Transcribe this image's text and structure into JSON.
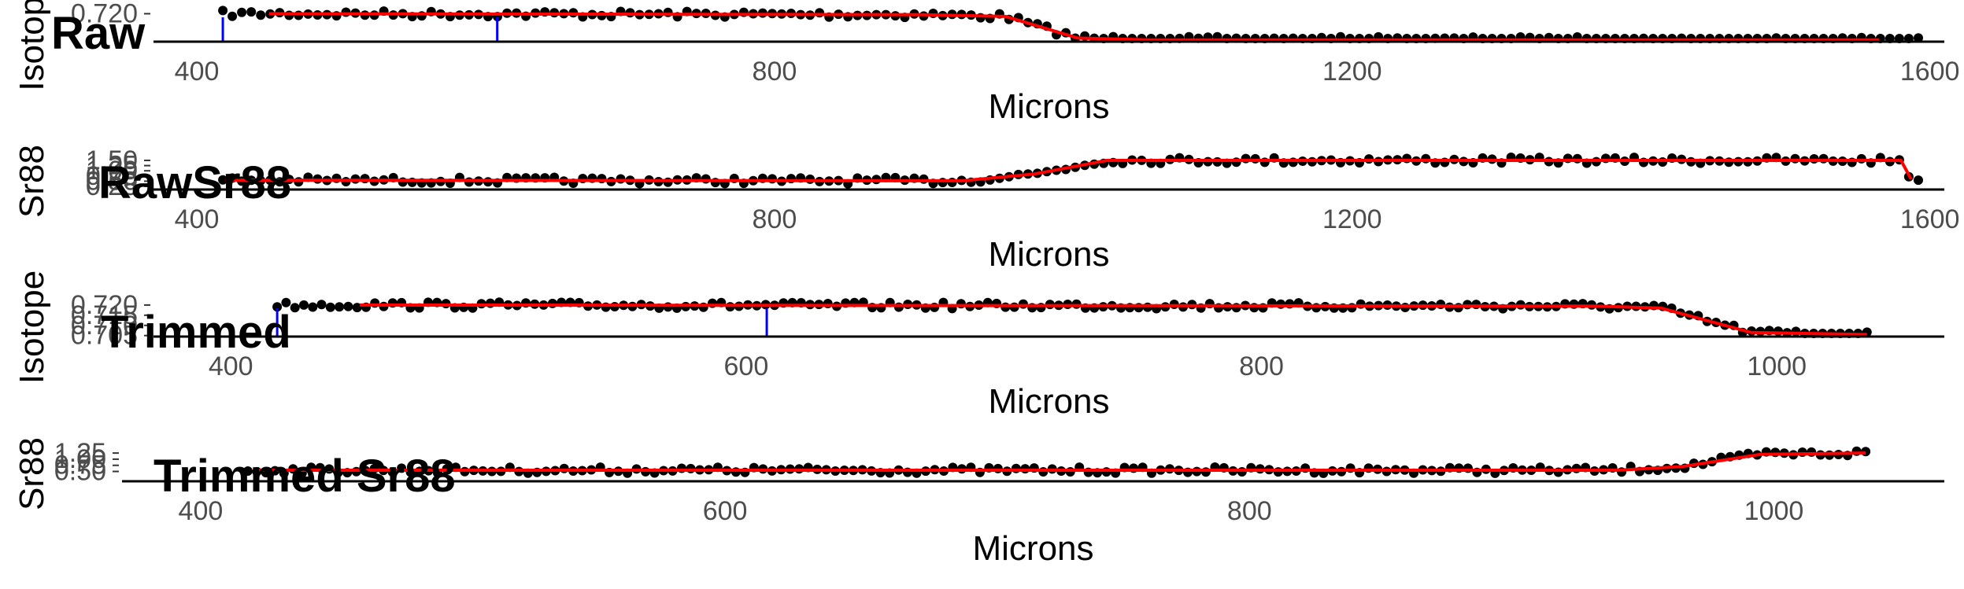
{
  "colors": {
    "points": "#000000",
    "smooth": "#ff0000",
    "marker": "#0000ff",
    "axis": "#000000"
  },
  "chart_data": [
    {
      "type": "scatter",
      "title": "Raw",
      "xlabel": "Microns",
      "ylabel": "Isotope",
      "xlim": [
        370,
        1610
      ],
      "ylim": [
        0.7045,
        0.7215
      ],
      "xticks": [
        400,
        800,
        1200,
        1600
      ],
      "yticks": [
        0.72
      ],
      "ytick_labels": [
        "0.720"
      ],
      "vlines": [
        418,
        608
      ],
      "points_x_range": [
        418,
        1592
      ],
      "smooth": {
        "x": [
          450,
          900,
          960,
          1010,
          1060,
          1565
        ],
        "y": [
          0.72,
          0.7195,
          0.7185,
          0.7065,
          0.7055,
          0.7055
        ]
      }
    },
    {
      "type": "scatter",
      "title": "RawSr88",
      "xlabel": "Microns",
      "ylabel": "Sr88",
      "xlim": [
        370,
        1610
      ],
      "ylim": [
        0.1,
        1.65
      ],
      "xticks": [
        400,
        800,
        1200,
        1600
      ],
      "yticks": [
        0.25,
        0.5,
        0.75,
        1.0,
        1.25,
        1.5
      ],
      "ytick_labels": [
        "0.25",
        "0.50",
        "0.75",
        "1.00",
        "1.25",
        "1.50"
      ],
      "points_x_range": [
        418,
        1592
      ],
      "smooth": {
        "x": [
          420,
          930,
          980,
          1030,
          1580,
          1587
        ],
        "y": [
          0.55,
          0.52,
          0.85,
          1.5,
          1.5,
          0.6
        ]
      }
    },
    {
      "type": "scatter",
      "title": "Trimmed",
      "xlabel": "Microns",
      "ylabel": "Isotope",
      "xlim": [
        370,
        1065
      ],
      "ylim": [
        0.7045,
        0.7215
      ],
      "xticks": [
        400,
        600,
        800,
        1000
      ],
      "yticks": [
        0.705,
        0.71,
        0.715,
        0.72
      ],
      "ytick_labels": [
        "0.705",
        "0.710",
        "0.715",
        "0.720"
      ],
      "vlines": [
        418,
        608
      ],
      "points_x_range": [
        418,
        1035
      ],
      "smooth": {
        "x": [
          450,
          930,
          955,
          990,
          1035
        ],
        "y": [
          0.72,
          0.7195,
          0.7185,
          0.7065,
          0.7055
        ]
      }
    },
    {
      "type": "scatter",
      "title": "Trimmed Sr88",
      "xlabel": "Microns",
      "ylabel": "Sr88",
      "xlim": [
        370,
        1065
      ],
      "ylim": [
        0.1,
        1.35
      ],
      "xticks": [
        400,
        600,
        800,
        1000
      ],
      "yticks": [
        0.5,
        0.75,
        1.0,
        1.25
      ],
      "ytick_labels": [
        "0.50",
        "0.75",
        "1.00",
        "1.25"
      ],
      "points_x_range": [
        418,
        1035
      ],
      "smooth": {
        "x": [
          420,
          940,
          965,
          995,
          1035
        ],
        "y": [
          0.55,
          0.55,
          0.7,
          1.2,
          1.25
        ]
      }
    }
  ]
}
